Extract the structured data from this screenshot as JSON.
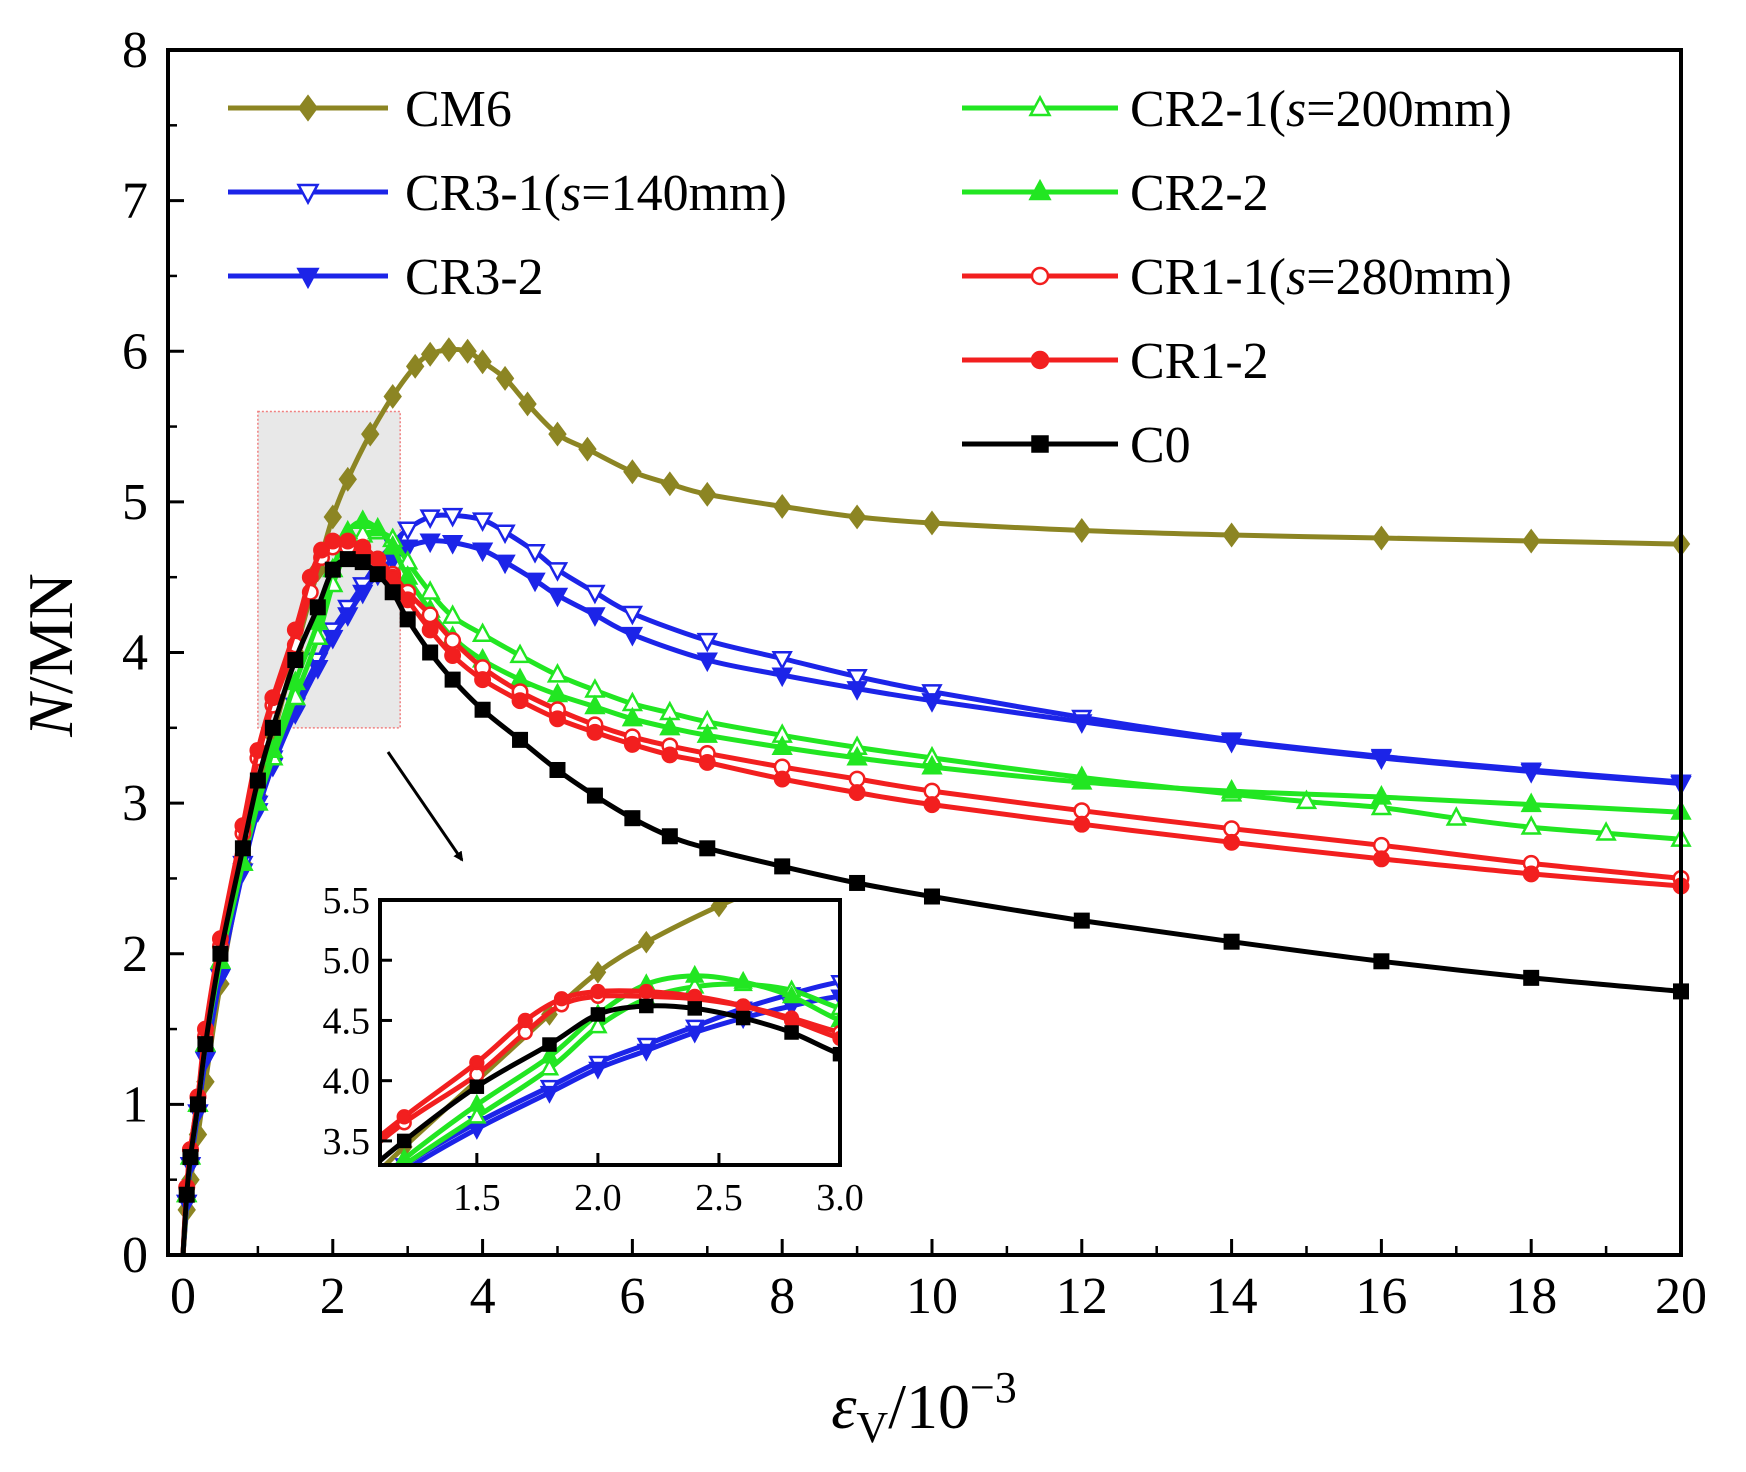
{
  "chart_data": {
    "type": "line",
    "xlabel": {
      "base": "ε",
      "sub": "V",
      "rest": "/10",
      "sup": "−3"
    },
    "ylabel": {
      "italic": "N",
      "rest": "/MN"
    },
    "xlim": [
      -0.2,
      20
    ],
    "ylim": [
      0,
      8
    ],
    "xticks": [
      0,
      2,
      4,
      6,
      8,
      10,
      12,
      14,
      16,
      18,
      20
    ],
    "yticks": [
      0,
      1,
      2,
      3,
      4,
      5,
      6,
      7,
      8
    ],
    "grid": false,
    "legend_placement": "top",
    "series": [
      {
        "name": "CM6",
        "legend": {
          "pre": "CM6",
          "italic": "",
          "post": ""
        },
        "color": "#8c8523",
        "marker": "diamond",
        "fill": true,
        "x": [
          0,
          0.05,
          0.1,
          0.2,
          0.3,
          0.5,
          0.8,
          1.0,
          1.2,
          1.5,
          1.8,
          2.0,
          2.2,
          2.5,
          2.8,
          3.1,
          3.3,
          3.55,
          3.8,
          4.0,
          4.3,
          4.6,
          5.0,
          5.4,
          6.0,
          6.5,
          7.0,
          8.0,
          9.0,
          10.0,
          12.0,
          14.0,
          16.0,
          18.0,
          20.0
        ],
        "y": [
          0,
          0.3,
          0.5,
          0.8,
          1.15,
          1.8,
          2.6,
          3.05,
          3.45,
          4.0,
          4.55,
          4.9,
          5.15,
          5.45,
          5.7,
          5.9,
          5.98,
          6.01,
          6.0,
          5.93,
          5.82,
          5.65,
          5.45,
          5.35,
          5.2,
          5.12,
          5.05,
          4.97,
          4.9,
          4.86,
          4.81,
          4.78,
          4.76,
          4.74,
          4.72
        ]
      },
      {
        "name": "CR3-1(s=140mm)",
        "legend": {
          "pre": "CR3-1(",
          "italic": "s",
          "post": "=140mm)"
        },
        "color": "#1c24e8",
        "marker": "triangle-down",
        "fill": false,
        "x": [
          0,
          0.05,
          0.1,
          0.2,
          0.3,
          0.5,
          0.8,
          1.0,
          1.2,
          1.5,
          1.8,
          2.0,
          2.2,
          2.4,
          2.6,
          2.8,
          3.0,
          3.3,
          3.6,
          4.0,
          4.3,
          4.7,
          5.0,
          5.5,
          6.0,
          7.0,
          8.0,
          9.0,
          10.0,
          12.0,
          14.0,
          16.0,
          18.0,
          20.0
        ],
        "y": [
          0,
          0.35,
          0.6,
          0.95,
          1.3,
          1.85,
          2.6,
          3.0,
          3.3,
          3.65,
          3.95,
          4.15,
          4.3,
          4.45,
          4.6,
          4.72,
          4.82,
          4.9,
          4.91,
          4.88,
          4.8,
          4.67,
          4.55,
          4.4,
          4.26,
          4.08,
          3.96,
          3.84,
          3.74,
          3.57,
          3.42,
          3.31,
          3.22,
          3.14
        ]
      },
      {
        "name": "CR3-2",
        "legend": {
          "pre": "CR3-2",
          "italic": "",
          "post": ""
        },
        "color": "#1c24e8",
        "marker": "triangle-down",
        "fill": true,
        "x": [
          0,
          0.05,
          0.1,
          0.2,
          0.3,
          0.5,
          0.8,
          1.0,
          1.2,
          1.5,
          1.8,
          2.0,
          2.2,
          2.4,
          2.6,
          2.8,
          3.0,
          3.3,
          3.6,
          4.0,
          4.3,
          4.7,
          5.0,
          5.5,
          6.0,
          7.0,
          8.0,
          9.0,
          10.0,
          12.0,
          14.0,
          16.0,
          18.0,
          20.0
        ],
        "y": [
          0,
          0.35,
          0.6,
          0.95,
          1.3,
          1.85,
          2.55,
          2.95,
          3.25,
          3.6,
          3.9,
          4.1,
          4.25,
          4.4,
          4.52,
          4.62,
          4.7,
          4.74,
          4.73,
          4.68,
          4.6,
          4.48,
          4.38,
          4.25,
          4.12,
          3.95,
          3.85,
          3.76,
          3.68,
          3.54,
          3.41,
          3.3,
          3.21,
          3.13
        ]
      },
      {
        "name": "CR2-1(s=200mm)",
        "legend": {
          "pre": "CR2-1(",
          "italic": "s",
          "post": "=200mm)"
        },
        "color": "#22e622",
        "marker": "triangle-up",
        "fill": false,
        "x": [
          0,
          0.05,
          0.1,
          0.2,
          0.3,
          0.5,
          0.8,
          1.0,
          1.2,
          1.5,
          1.8,
          2.0,
          2.2,
          2.4,
          2.6,
          2.8,
          3.0,
          3.3,
          3.6,
          4.0,
          4.5,
          5.0,
          5.5,
          6.0,
          6.5,
          7.0,
          8.0,
          9.0,
          10.0,
          12.0,
          14.0,
          15.0,
          16.0,
          17.0,
          18.0,
          19.0,
          20.0
        ],
        "y": [
          0,
          0.4,
          0.65,
          1.0,
          1.4,
          1.95,
          2.6,
          3.0,
          3.3,
          3.7,
          4.1,
          4.45,
          4.68,
          4.78,
          4.8,
          4.75,
          4.6,
          4.4,
          4.24,
          4.12,
          3.98,
          3.85,
          3.75,
          3.66,
          3.6,
          3.54,
          3.45,
          3.37,
          3.3,
          3.17,
          3.06,
          3.01,
          2.97,
          2.9,
          2.84,
          2.8,
          2.76
        ]
      },
      {
        "name": "CR2-2",
        "legend": {
          "pre": "CR2-2",
          "italic": "",
          "post": ""
        },
        "color": "#22e622",
        "marker": "triangle-up",
        "fill": true,
        "x": [
          0,
          0.05,
          0.1,
          0.2,
          0.3,
          0.5,
          0.8,
          1.0,
          1.2,
          1.5,
          1.8,
          2.0,
          2.2,
          2.4,
          2.6,
          2.8,
          3.0,
          3.3,
          3.6,
          4.0,
          4.5,
          5.0,
          5.5,
          6.0,
          6.5,
          7.0,
          8.0,
          9.0,
          10.0,
          12.0,
          14.0,
          16.0,
          18.0,
          20.0
        ],
        "y": [
          0,
          0.4,
          0.65,
          1.0,
          1.4,
          1.95,
          2.6,
          3.0,
          3.35,
          3.8,
          4.2,
          4.55,
          4.8,
          4.87,
          4.82,
          4.7,
          4.5,
          4.28,
          4.1,
          3.95,
          3.82,
          3.72,
          3.64,
          3.56,
          3.5,
          3.45,
          3.37,
          3.3,
          3.24,
          3.14,
          3.08,
          3.04,
          2.99,
          2.94
        ]
      },
      {
        "name": "CR1-1(s=280mm)",
        "legend": {
          "pre": "CR1-1(",
          "italic": "s",
          "post": "=280mm)"
        },
        "color": "#f21f1f",
        "marker": "circle",
        "fill": false,
        "x": [
          0,
          0.05,
          0.1,
          0.2,
          0.3,
          0.5,
          0.8,
          1.0,
          1.2,
          1.5,
          1.7,
          1.85,
          2.0,
          2.2,
          2.4,
          2.6,
          2.8,
          3.0,
          3.3,
          3.6,
          4.0,
          4.5,
          5.0,
          5.5,
          6.0,
          6.5,
          7.0,
          8.0,
          9.0,
          10.0,
          12.0,
          14.0,
          16.0,
          18.0,
          20.0
        ],
        "y": [
          0,
          0.45,
          0.7,
          1.05,
          1.45,
          2.05,
          2.8,
          3.3,
          3.65,
          4.05,
          4.4,
          4.63,
          4.7,
          4.7,
          4.68,
          4.62,
          4.52,
          4.4,
          4.25,
          4.08,
          3.9,
          3.74,
          3.62,
          3.52,
          3.44,
          3.38,
          3.33,
          3.24,
          3.16,
          3.08,
          2.95,
          2.83,
          2.72,
          2.6,
          2.5
        ]
      },
      {
        "name": "CR1-2",
        "legend": {
          "pre": "CR1-2",
          "italic": "",
          "post": ""
        },
        "color": "#f21f1f",
        "marker": "circle",
        "fill": true,
        "x": [
          0,
          0.05,
          0.1,
          0.2,
          0.3,
          0.5,
          0.8,
          1.0,
          1.2,
          1.5,
          1.7,
          1.85,
          2.0,
          2.2,
          2.4,
          2.6,
          2.8,
          3.0,
          3.3,
          3.6,
          4.0,
          4.5,
          5.0,
          5.5,
          6.0,
          6.5,
          7.0,
          8.0,
          9.0,
          10.0,
          12.0,
          14.0,
          16.0,
          18.0,
          20.0
        ],
        "y": [
          0,
          0.45,
          0.7,
          1.05,
          1.5,
          2.1,
          2.85,
          3.35,
          3.7,
          4.15,
          4.5,
          4.68,
          4.74,
          4.74,
          4.7,
          4.62,
          4.5,
          4.35,
          4.15,
          3.98,
          3.82,
          3.68,
          3.56,
          3.47,
          3.39,
          3.32,
          3.27,
          3.16,
          3.07,
          2.99,
          2.86,
          2.74,
          2.63,
          2.53,
          2.45
        ]
      },
      {
        "name": "C0",
        "legend": {
          "pre": "C0",
          "italic": "",
          "post": ""
        },
        "color": "#000000",
        "marker": "square",
        "fill": true,
        "x": [
          0,
          0.05,
          0.1,
          0.2,
          0.3,
          0.5,
          0.8,
          1.0,
          1.2,
          1.5,
          1.8,
          2.0,
          2.2,
          2.4,
          2.6,
          2.8,
          3.0,
          3.3,
          3.6,
          4.0,
          4.5,
          5.0,
          5.5,
          6.0,
          6.5,
          7.0,
          8.0,
          9.0,
          10.0,
          12.0,
          14.0,
          16.0,
          18.0,
          20.0
        ],
        "y": [
          0,
          0.4,
          0.65,
          1.0,
          1.4,
          2.0,
          2.7,
          3.15,
          3.5,
          3.95,
          4.3,
          4.55,
          4.62,
          4.6,
          4.52,
          4.4,
          4.22,
          4.0,
          3.82,
          3.62,
          3.42,
          3.22,
          3.05,
          2.9,
          2.78,
          2.7,
          2.58,
          2.47,
          2.38,
          2.22,
          2.08,
          1.95,
          1.84,
          1.75
        ]
      }
    ],
    "highlight_region": {
      "x": [
        1.0,
        2.9
      ],
      "y": [
        3.5,
        5.6
      ]
    },
    "inset": {
      "xlim": [
        1.1,
        3.0
      ],
      "ylim": [
        3.3,
        5.5
      ],
      "xticks": [
        "1.5",
        "2.0",
        "2.5",
        "3.0"
      ],
      "yticks": [
        "3.5",
        "4.0",
        "4.5",
        "5.0",
        "5.5"
      ]
    }
  }
}
